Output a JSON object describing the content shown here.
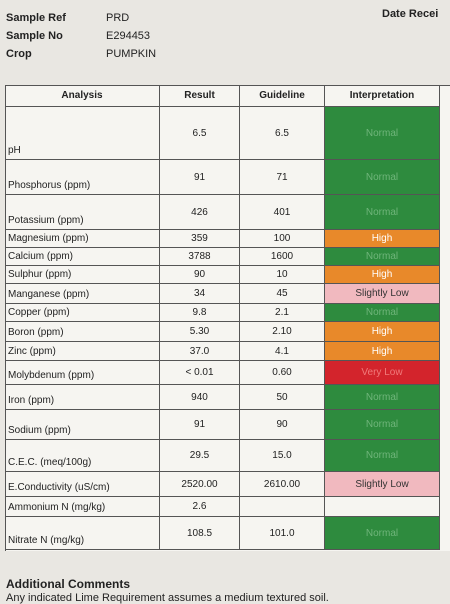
{
  "header": {
    "fields": [
      {
        "label": "Sample Ref",
        "value": "PRD"
      },
      {
        "label": "Sample No",
        "value": "E294453"
      },
      {
        "label": "Crop",
        "value": "PUMPKIN"
      }
    ],
    "date_label": "Date Recei"
  },
  "table": {
    "columns": [
      "Analysis",
      "Result",
      "Guideline",
      "Interpretation"
    ],
    "rows": [
      {
        "analysis": "pH",
        "result": "6.5",
        "guideline": "6.5",
        "interpretation": "Normal",
        "color": "#2e8b3e"
      },
      {
        "analysis": "Phosphorus (ppm)",
        "result": "91",
        "guideline": "71",
        "interpretation": "Normal",
        "color": "#2e8b3e"
      },
      {
        "analysis": "Potassium (ppm)",
        "result": "426",
        "guideline": "401",
        "interpretation": "Normal",
        "color": "#2e8b3e"
      },
      {
        "analysis": "Magnesium (ppm)",
        "result": "359",
        "guideline": "100",
        "interpretation": "High",
        "color": "#e8892a"
      },
      {
        "analysis": "Calcium (ppm)",
        "result": "3788",
        "guideline": "1600",
        "interpretation": "Normal",
        "color": "#2e8b3e"
      },
      {
        "analysis": "Sulphur (ppm)",
        "result": "90",
        "guideline": "10",
        "interpretation": "High",
        "color": "#e8892a"
      },
      {
        "analysis": "Manganese (ppm)",
        "result": "34",
        "guideline": "45",
        "interpretation": "Slightly Low",
        "color": "#f1b9bf"
      },
      {
        "analysis": "Copper (ppm)",
        "result": "9.8",
        "guideline": "2.1",
        "interpretation": "Normal",
        "color": "#2e8b3e"
      },
      {
        "analysis": "Boron (ppm)",
        "result": "5.30",
        "guideline": "2.10",
        "interpretation": "High",
        "color": "#e8892a"
      },
      {
        "analysis": "Zinc (ppm)",
        "result": "37.0",
        "guideline": "4.1",
        "interpretation": "High",
        "color": "#e8892a"
      },
      {
        "analysis": "Molybdenum (ppm)",
        "result": "< 0.01",
        "guideline": "0.60",
        "interpretation": "Very Low",
        "color": "#d3242c"
      },
      {
        "analysis": "Iron (ppm)",
        "result": "940",
        "guideline": "50",
        "interpretation": "Normal",
        "color": "#2e8b3e"
      },
      {
        "analysis": "Sodium (ppm)",
        "result": "91",
        "guideline": "90",
        "interpretation": "Normal",
        "color": "#2e8b3e"
      },
      {
        "analysis": "C.E.C. (meq/100g)",
        "result": "29.5",
        "guideline": "15.0",
        "interpretation": "Normal",
        "color": "#2e8b3e"
      },
      {
        "analysis": "E.Conductivity (uS/cm)",
        "result": "2520.00",
        "guideline": "2610.00",
        "interpretation": "Slightly Low",
        "color": "#f1b9bf"
      },
      {
        "analysis": "Ammonium N (mg/kg)",
        "result": "2.6",
        "guideline": null,
        "interpretation": null,
        "color": null
      },
      {
        "analysis": "Nitrate N (mg/kg)",
        "result": "108.5",
        "guideline": "101.0",
        "interpretation": "Normal",
        "color": "#2e8b3e"
      }
    ]
  },
  "comments": {
    "title": "Additional Comments",
    "text": "Any indicated Lime Requirement assumes a medium textured soil."
  }
}
